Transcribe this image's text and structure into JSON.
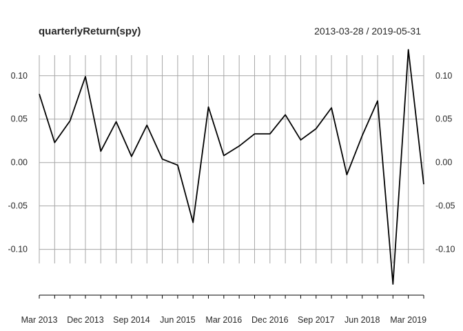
{
  "chart_data": {
    "type": "line",
    "title": "quarterlyReturn(spy)",
    "date_range": "2013-03-28 / 2019-05-31",
    "xlabel": "",
    "ylabel": "",
    "x": [
      "2013-03-28",
      "2013-06-28",
      "2013-09-30",
      "2013-12-31",
      "2014-03-31",
      "2014-06-30",
      "2014-09-30",
      "2014-12-31",
      "2015-03-31",
      "2015-06-30",
      "2015-09-30",
      "2015-12-31",
      "2016-03-31",
      "2016-06-30",
      "2016-09-30",
      "2016-12-30",
      "2017-03-31",
      "2017-06-30",
      "2017-09-29",
      "2017-12-29",
      "2018-03-29",
      "2018-06-29",
      "2018-09-28",
      "2018-12-31",
      "2019-03-29",
      "2019-05-31"
    ],
    "series": [
      {
        "values": [
          0.079,
          0.023,
          0.048,
          0.099,
          0.013,
          0.047,
          0.007,
          0.043,
          0.004,
          -0.003,
          -0.069,
          0.064,
          0.008,
          0.019,
          0.033,
          0.033,
          0.055,
          0.026,
          0.039,
          0.063,
          -0.014,
          0.031,
          0.071,
          -0.14,
          0.13,
          -0.025
        ]
      }
    ],
    "x_tick_labels": [
      "Mar 2013",
      "Dec 2013",
      "Sep 2014",
      "Jun 2015",
      "Mar 2016",
      "Dec 2016",
      "Sep 2017",
      "Jun 2018",
      "Mar 2019"
    ],
    "x_tick_indices": [
      0,
      3,
      6,
      9,
      12,
      15,
      18,
      21,
      24
    ],
    "y_ticks": [
      0.1,
      0.05,
      0.0,
      -0.05,
      -0.1
    ],
    "y_tick_labels": [
      "0.10",
      "0.05",
      "0.00",
      "-0.05",
      "-0.10"
    ],
    "ylim": [
      -0.14,
      0.13
    ],
    "grid": true,
    "line_color": "#000000",
    "grid_color": "#a6a6a6"
  }
}
